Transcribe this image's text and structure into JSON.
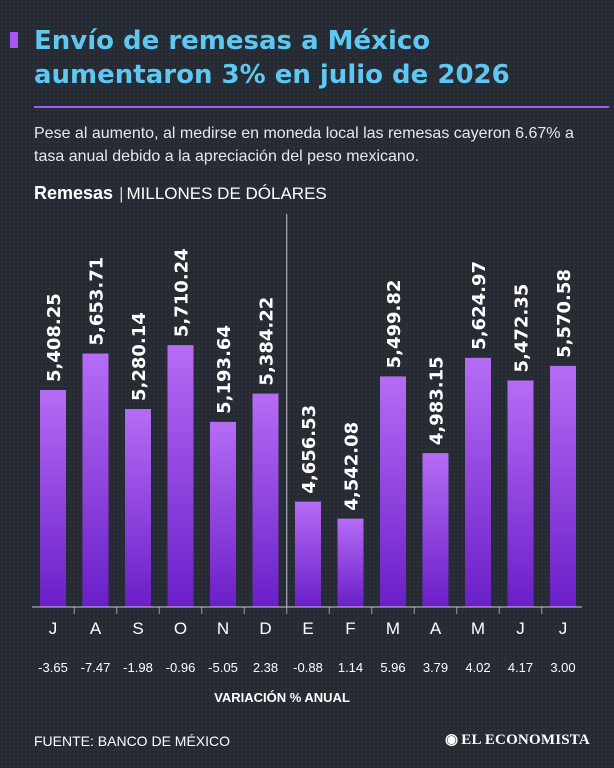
{
  "header": {
    "title": "Envío de remesas a México aumentaron 3% en julio de 2026",
    "subtitle": "Pese al aumento, al medirse en moneda local las remesas cayeron 6.67% a tasa anual debido a la apreciación del peso mexicano.",
    "unit_strong": "Remesas",
    "unit_sep": "|",
    "unit_label": "MILLONES DE DÓLARES"
  },
  "footer": {
    "source": "FUENTE: BANCO DE MÉXICO",
    "brand": "EL ECONOMISTA",
    "brand_icon": "economista-logo-icon"
  },
  "colors": {
    "bar_top": "#b56cf5",
    "bar_bottom": "#6a1fc8",
    "title": "#5ec8f2",
    "accent": "#a855f7",
    "background": "#262a33"
  },
  "chart_data": {
    "type": "bar",
    "categories": [
      "J",
      "A",
      "S",
      "O",
      "N",
      "D",
      "E",
      "F",
      "M",
      "A",
      "M",
      "J",
      "J"
    ],
    "values": [
      5408.25,
      5653.71,
      5280.14,
      5710.24,
      5193.64,
      5384.22,
      4656.53,
      4542.08,
      5499.82,
      4983.15,
      5624.97,
      5472.35,
      5570.58
    ],
    "value_labels": [
      "5,408.25",
      "5,653.71",
      "5,280.14",
      "5,710.24",
      "5,193.64",
      "5,384.22",
      "4,656.53",
      "4,542.08",
      "5,499.82",
      "4,983.15",
      "5,624.97",
      "5,472.35",
      "5,570.58"
    ],
    "variation": [
      "-3.65",
      "-7.47",
      "-1.98",
      "-0.96",
      "-5.05",
      "2.38",
      "-0.88",
      "1.14",
      "5.96",
      "3.79",
      "4.02",
      "4.17",
      "3.00"
    ],
    "variation_label": "VARIACIÓN % ANUAL",
    "year_divider_after_index": 5,
    "grid": false,
    "legend": "none"
  }
}
